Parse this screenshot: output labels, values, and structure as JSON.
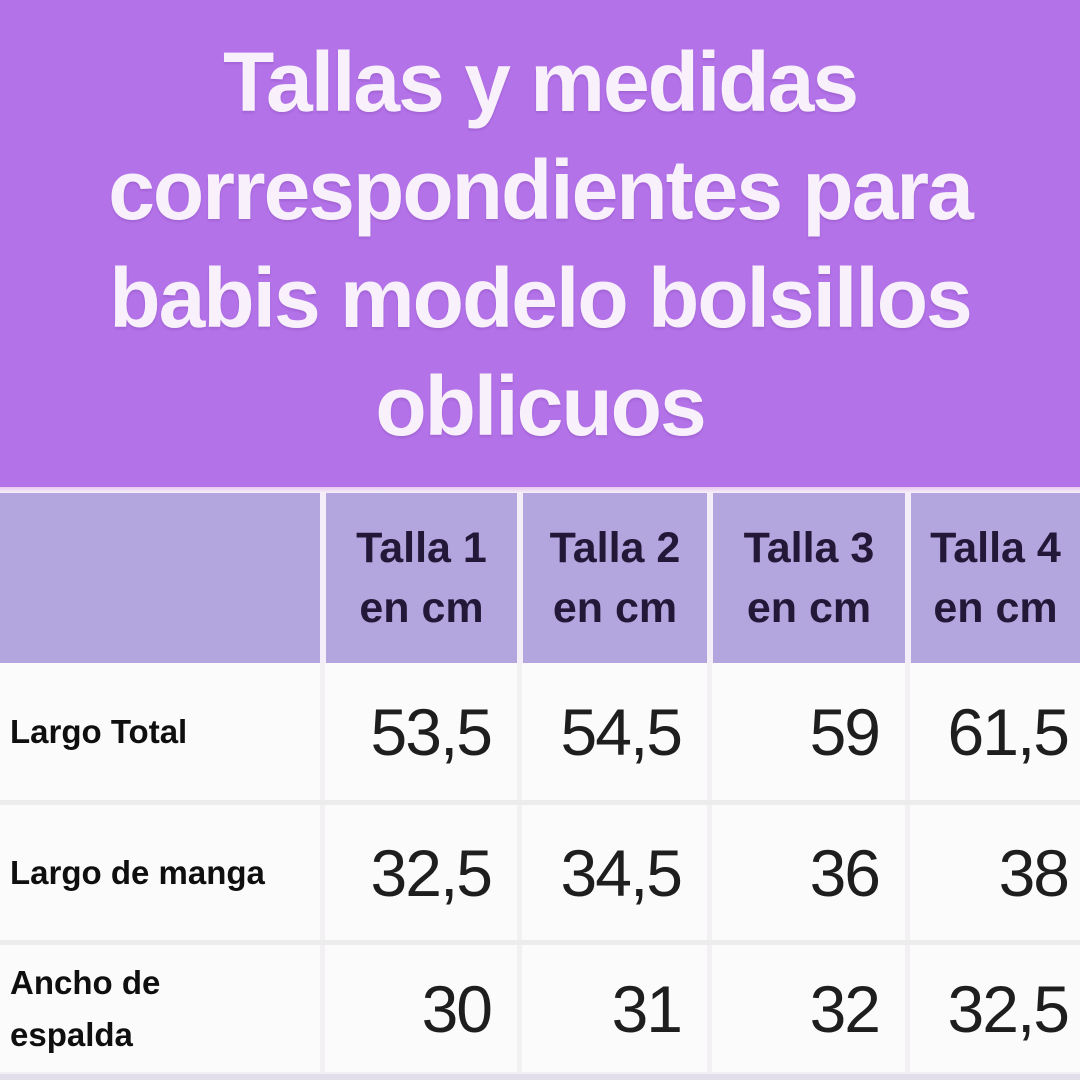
{
  "title": {
    "full": "Tallas y medidas correspondientes para babis modelo bolsillos oblicuos",
    "lines": [
      "Tallas y medidas",
      "correspondientes para",
      "babis modelo bolsillos",
      "oblicuos"
    ]
  },
  "table": {
    "corner_label": "",
    "columns": [
      {
        "name": "Talla 1",
        "unit": "en cm"
      },
      {
        "name": "Talla 2",
        "unit": "en cm"
      },
      {
        "name": "Talla 3",
        "unit": "en cm"
      },
      {
        "name": "Talla 4",
        "unit": "en cm"
      }
    ],
    "rows": [
      {
        "label": "Largo Total",
        "values": [
          "53,5",
          "54,5",
          "59",
          "61,5"
        ]
      },
      {
        "label": "Largo de manga",
        "values": [
          "32,5",
          "34,5",
          "36",
          "38"
        ]
      },
      {
        "label": "Ancho de\nespalda",
        "values": [
          "30",
          "31",
          "32",
          "32,5"
        ]
      }
    ]
  },
  "colors": {
    "title_background": "#b372e8",
    "title_text": "#f8f1fb",
    "header_background": "#b3a5de",
    "header_text": "#241838",
    "body_background": "#fcfbfc",
    "value_text": "#1e1e1e",
    "row_separator": "#ececec",
    "column_separator_header": "#f4eef8",
    "column_separator_body": "#f2f0f3",
    "bottom_strip": "#e3dfea"
  },
  "chart_data": {
    "type": "table",
    "title": "Tallas y medidas correspondientes para babis modelo bolsillos oblicuos",
    "units": "cm",
    "columns": [
      "",
      "Talla 1 en cm",
      "Talla 2 en cm",
      "Talla 3 en cm",
      "Talla 4 en cm"
    ],
    "rows": [
      {
        "label": "Largo Total",
        "values": [
          53.5,
          54.5,
          59,
          61.5
        ]
      },
      {
        "label": "Largo de manga",
        "values": [
          32.5,
          34.5,
          36,
          38
        ]
      },
      {
        "label": "Ancho de espalda",
        "values": [
          30,
          31,
          32,
          32.5
        ]
      }
    ]
  }
}
